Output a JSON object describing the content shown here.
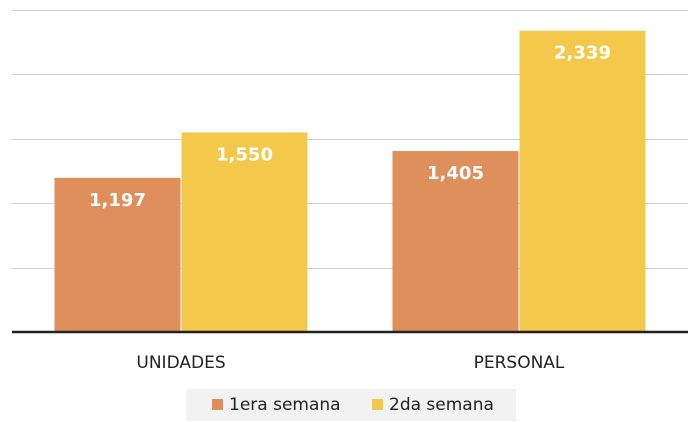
{
  "chart_data": {
    "type": "bar",
    "categories": [
      "UNIDADES",
      "PERSONAL"
    ],
    "series": [
      {
        "name": "1era semana",
        "values": [
          1197,
          1405
        ],
        "labels": [
          "1,197",
          "1,405"
        ],
        "color": "#df8f5c"
      },
      {
        "name": "2da semana",
        "values": [
          1550,
          2339
        ],
        "labels": [
          "1,550",
          "2,339"
        ],
        "color": "#f4c94b"
      }
    ],
    "title": "",
    "xlabel": "",
    "ylabel": "",
    "ylim": [
      0,
      2500
    ],
    "grid": true,
    "legend": "bottom"
  }
}
